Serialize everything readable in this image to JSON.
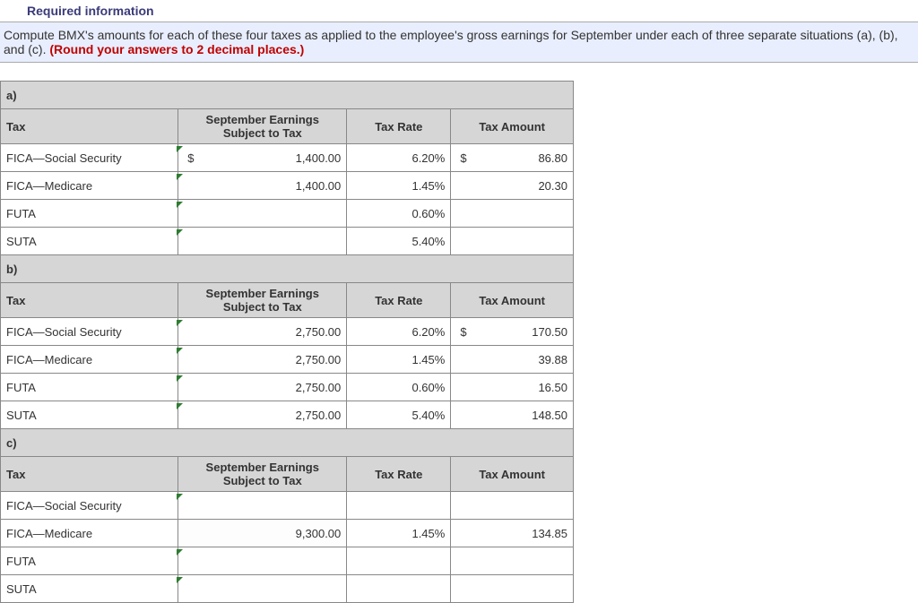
{
  "header": {
    "required_info": "Required information",
    "instructions_1": "Compute BMX's amounts for each of these four taxes as applied to the employee's gross earnings for September under each of three separate situations (a), (b), and (c). ",
    "instructions_red": "(Round your answers to 2 decimal places.)"
  },
  "columns": {
    "tax": "Tax",
    "earnings": "September Earnings Subject to Tax",
    "rate": "Tax Rate",
    "amount": "Tax Amount"
  },
  "sections": [
    {
      "label": "a)",
      "rows": [
        {
          "tax": "FICA—Social Security",
          "earn_prefix": "$",
          "earn": "1,400.00",
          "rate": "6.20%",
          "amt_prefix": "$",
          "amt": "86.80",
          "earn_tick": true,
          "amt_tick": false
        },
        {
          "tax": "FICA—Medicare",
          "earn_prefix": "",
          "earn": "1,400.00",
          "rate": "1.45%",
          "amt_prefix": "",
          "amt": "20.30",
          "earn_tick": true,
          "amt_tick": false
        },
        {
          "tax": "FUTA",
          "earn_prefix": "",
          "earn": "",
          "rate": "0.60%",
          "amt_prefix": "",
          "amt": "",
          "earn_tick": true,
          "amt_tick": false
        },
        {
          "tax": "SUTA",
          "earn_prefix": "",
          "earn": "",
          "rate": "5.40%",
          "amt_prefix": "",
          "amt": "",
          "earn_tick": true,
          "amt_tick": false
        }
      ]
    },
    {
      "label": "b)",
      "rows": [
        {
          "tax": "FICA—Social Security",
          "earn_prefix": "",
          "earn": "2,750.00",
          "rate": "6.20%",
          "amt_prefix": "$",
          "amt": "170.50",
          "earn_tick": true,
          "amt_tick": false
        },
        {
          "tax": "FICA—Medicare",
          "earn_prefix": "",
          "earn": "2,750.00",
          "rate": "1.45%",
          "amt_prefix": "",
          "amt": "39.88",
          "earn_tick": true,
          "amt_tick": false
        },
        {
          "tax": "FUTA",
          "earn_prefix": "",
          "earn": "2,750.00",
          "rate": "0.60%",
          "amt_prefix": "",
          "amt": "16.50",
          "earn_tick": true,
          "amt_tick": false
        },
        {
          "tax": "SUTA",
          "earn_prefix": "",
          "earn": "2,750.00",
          "rate": "5.40%",
          "amt_prefix": "",
          "amt": "148.50",
          "earn_tick": true,
          "amt_tick": false
        }
      ]
    },
    {
      "label": "c)",
      "rows": [
        {
          "tax": "FICA—Social Security",
          "earn_prefix": "",
          "earn": "",
          "rate": "",
          "amt_prefix": "",
          "amt": "",
          "earn_tick": true,
          "amt_tick": false,
          "dashed": false
        },
        {
          "tax": "FICA—Medicare",
          "earn_prefix": "",
          "earn": "9,300.00",
          "rate": "1.45%",
          "amt_prefix": "",
          "amt": "134.85",
          "earn_tick": false,
          "amt_tick": false,
          "dashed": true
        },
        {
          "tax": "FUTA",
          "earn_prefix": "",
          "earn": "",
          "rate": "",
          "amt_prefix": "",
          "amt": "",
          "earn_tick": true,
          "amt_tick": false,
          "dashed": false
        },
        {
          "tax": "SUTA",
          "earn_prefix": "",
          "earn": "",
          "rate": "",
          "amt_prefix": "",
          "amt": "",
          "earn_tick": true,
          "amt_tick": false,
          "dashed": false
        }
      ]
    }
  ]
}
